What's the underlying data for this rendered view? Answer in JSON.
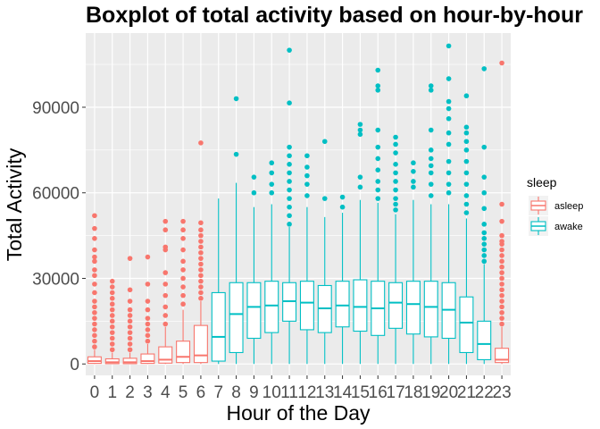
{
  "chart_data": {
    "type": "boxplot",
    "title": "Boxplot of total activity based on hour-by-hour",
    "xlabel": "Hour of the Day",
    "ylabel": "Total Activity",
    "categories": [
      "0",
      "1",
      "2",
      "3",
      "4",
      "5",
      "6",
      "7",
      "8",
      "9",
      "10",
      "11",
      "12",
      "13",
      "14",
      "15",
      "16",
      "17",
      "18",
      "19",
      "20",
      "21",
      "22",
      "23"
    ],
    "ylim": [
      -4000,
      116000
    ],
    "yticks": [
      0,
      30000,
      60000,
      90000
    ],
    "ytick_labels": [
      "0",
      "30000",
      "60000",
      "90000"
    ],
    "grid": true,
    "legend": {
      "title": "sleep",
      "placement": "right",
      "entries": [
        {
          "name": "asleep",
          "color": "#F8766D"
        },
        {
          "name": "awake",
          "color": "#00BFC4"
        }
      ]
    },
    "series": [
      {
        "name": "asleep",
        "color": "#F8766D",
        "boxes": [
          {
            "x": "0",
            "q1": 200,
            "median": 1000,
            "q3": 2500,
            "whisker_low": 0,
            "whisker_high": 5000,
            "outliers": [
              6000,
              8000,
              10000,
              12000,
              14000,
              16000,
              18000,
              20000,
              22000,
              25000,
              28000,
              31000,
              33000,
              36000,
              37500,
              40000,
              44000,
              47500,
              52000
            ]
          },
          {
            "x": "1",
            "q1": 100,
            "median": 600,
            "q3": 1800,
            "whisker_low": 0,
            "whisker_high": 4000,
            "outliers": [
              5000,
              7000,
              9000,
              11000,
              13000,
              15000,
              17000,
              19000,
              21000,
              23000,
              25000,
              27000,
              29000
            ]
          },
          {
            "x": "2",
            "q1": 100,
            "median": 600,
            "q3": 2000,
            "whisker_low": 0,
            "whisker_high": 4000,
            "outliers": [
              5000,
              7000,
              9000,
              11000,
              13000,
              15000,
              17000,
              19000,
              22000,
              26000,
              37000
            ]
          },
          {
            "x": "3",
            "q1": 200,
            "median": 1000,
            "q3": 3500,
            "whisker_low": 0,
            "whisker_high": 7000,
            "outliers": [
              8000,
              10000,
              12000,
              14000,
              16000,
              19000,
              22000,
              28000,
              37500
            ]
          },
          {
            "x": "4",
            "q1": 300,
            "median": 1500,
            "q3": 6000,
            "whisker_low": 0,
            "whisker_high": 13000,
            "outliers": [
              14000,
              17000,
              20000,
              24000,
              28000,
              32000,
              40000,
              41000,
              47000,
              50000
            ]
          },
          {
            "x": "5",
            "q1": 500,
            "median": 2500,
            "q3": 8000,
            "whisker_low": 0,
            "whisker_high": 19000,
            "outliers": [
              21000,
              24000,
              27000,
              30000,
              33000,
              36000,
              40000,
              44000,
              47000,
              50000
            ]
          },
          {
            "x": "6",
            "q1": 500,
            "median": 3000,
            "q3": 13500,
            "whisker_low": 0,
            "whisker_high": 22000,
            "outliers": [
              23000,
              25000,
              27000,
              29000,
              31000,
              33000,
              35000,
              37000,
              39000,
              41000,
              43000,
              45000,
              47000,
              49500,
              77500
            ]
          },
          {
            "x": "23",
            "q1": 500,
            "median": 1500,
            "q3": 5500,
            "whisker_low": 0,
            "whisker_high": 13000,
            "outliers": [
              14000,
              16000,
              18000,
              20000,
              22000,
              24000,
              26000,
              28000,
              30000,
              32000,
              34000,
              36000,
              38000,
              40000,
              42000,
              43000,
              45000,
              50000,
              56000,
              105500
            ]
          }
        ]
      },
      {
        "name": "awake",
        "color": "#00BFC4",
        "boxes": [
          {
            "x": "7",
            "q1": 1000,
            "median": 9500,
            "q3": 25000,
            "whisker_low": 0,
            "whisker_high": 58000,
            "outliers": []
          },
          {
            "x": "8",
            "q1": 4000,
            "median": 17500,
            "q3": 28500,
            "whisker_low": 0,
            "whisker_high": 63500,
            "outliers": [
              73500,
              93000
            ]
          },
          {
            "x": "9",
            "q1": 9000,
            "median": 20000,
            "q3": 28500,
            "whisker_low": 0,
            "whisker_high": 55000,
            "outliers": [
              60000,
              65500
            ]
          },
          {
            "x": "10",
            "q1": 11000,
            "median": 20500,
            "q3": 29000,
            "whisker_low": 0,
            "whisker_high": 56000,
            "outliers": [
              60000,
              63000,
              67000,
              70500
            ]
          },
          {
            "x": "11",
            "q1": 15000,
            "median": 22000,
            "q3": 28500,
            "whisker_low": 0,
            "whisker_high": 48000,
            "outliers": [
              49000,
              52000,
              55000,
              58000,
              61000,
              64000,
              67000,
              70000,
              73000,
              76000,
              91500,
              110000
            ]
          },
          {
            "x": "12",
            "q1": 12000,
            "median": 21500,
            "q3": 29000,
            "whisker_low": 0,
            "whisker_high": 55000,
            "outliers": [
              59000,
              63000,
              66000,
              69000,
              73000
            ]
          },
          {
            "x": "13",
            "q1": 11000,
            "median": 19500,
            "q3": 27500,
            "whisker_low": 0,
            "whisker_high": 51500,
            "outliers": [
              58000,
              78000
            ]
          },
          {
            "x": "14",
            "q1": 13000,
            "median": 20500,
            "q3": 29000,
            "whisker_low": 0,
            "whisker_high": 53000,
            "outliers": [
              55000,
              58500
            ]
          },
          {
            "x": "15",
            "q1": 11500,
            "median": 20000,
            "q3": 29500,
            "whisker_low": 0,
            "whisker_high": 57500,
            "outliers": [
              62000,
              65500,
              80500,
              82000,
              84000
            ]
          },
          {
            "x": "16",
            "q1": 10000,
            "median": 19500,
            "q3": 29000,
            "whisker_low": 0,
            "whisker_high": 56500,
            "outliers": [
              58000,
              61000,
              64000,
              68000,
              72000,
              76000,
              82000,
              96000,
              97500,
              103000
            ]
          },
          {
            "x": "17",
            "q1": 12500,
            "median": 21500,
            "q3": 28500,
            "whisker_low": 0,
            "whisker_high": 52500,
            "outliers": [
              54000,
              56000,
              58000,
              61000,
              64000,
              67000,
              70000,
              74000,
              77000,
              79500
            ]
          },
          {
            "x": "18",
            "q1": 10500,
            "median": 21000,
            "q3": 29000,
            "whisker_low": 0,
            "whisker_high": 57500,
            "outliers": [
              62000,
              64000,
              67500,
              70500
            ]
          },
          {
            "x": "19",
            "q1": 9500,
            "median": 20000,
            "q3": 29000,
            "whisker_low": 0,
            "whisker_high": 56000,
            "outliers": [
              59000,
              63000,
              67000,
              69500,
              72000,
              75000,
              82000,
              96000,
              97500
            ]
          },
          {
            "x": "20",
            "q1": 9000,
            "median": 19000,
            "q3": 28500,
            "whisker_low": 0,
            "whisker_high": 56000,
            "outliers": [
              60000,
              63000,
              67000,
              71000,
              77000,
              81000,
              86000,
              89500,
              92000,
              100000,
              111500
            ]
          },
          {
            "x": "21",
            "q1": 4000,
            "median": 14500,
            "q3": 23500,
            "whisker_low": 0,
            "whisker_high": 51000,
            "outliers": [
              53000,
              56000,
              59000,
              63000,
              67000,
              71000,
              75000,
              78000,
              81000,
              83000,
              94000
            ]
          },
          {
            "x": "22",
            "q1": 1500,
            "median": 7000,
            "q3": 15000,
            "whisker_low": 0,
            "whisker_high": 35000,
            "outliers": [
              36000,
              38000,
              40000,
              42000,
              44000,
              46000,
              49000,
              54500,
              60000,
              65500,
              76000,
              103500
            ]
          }
        ]
      }
    ]
  }
}
